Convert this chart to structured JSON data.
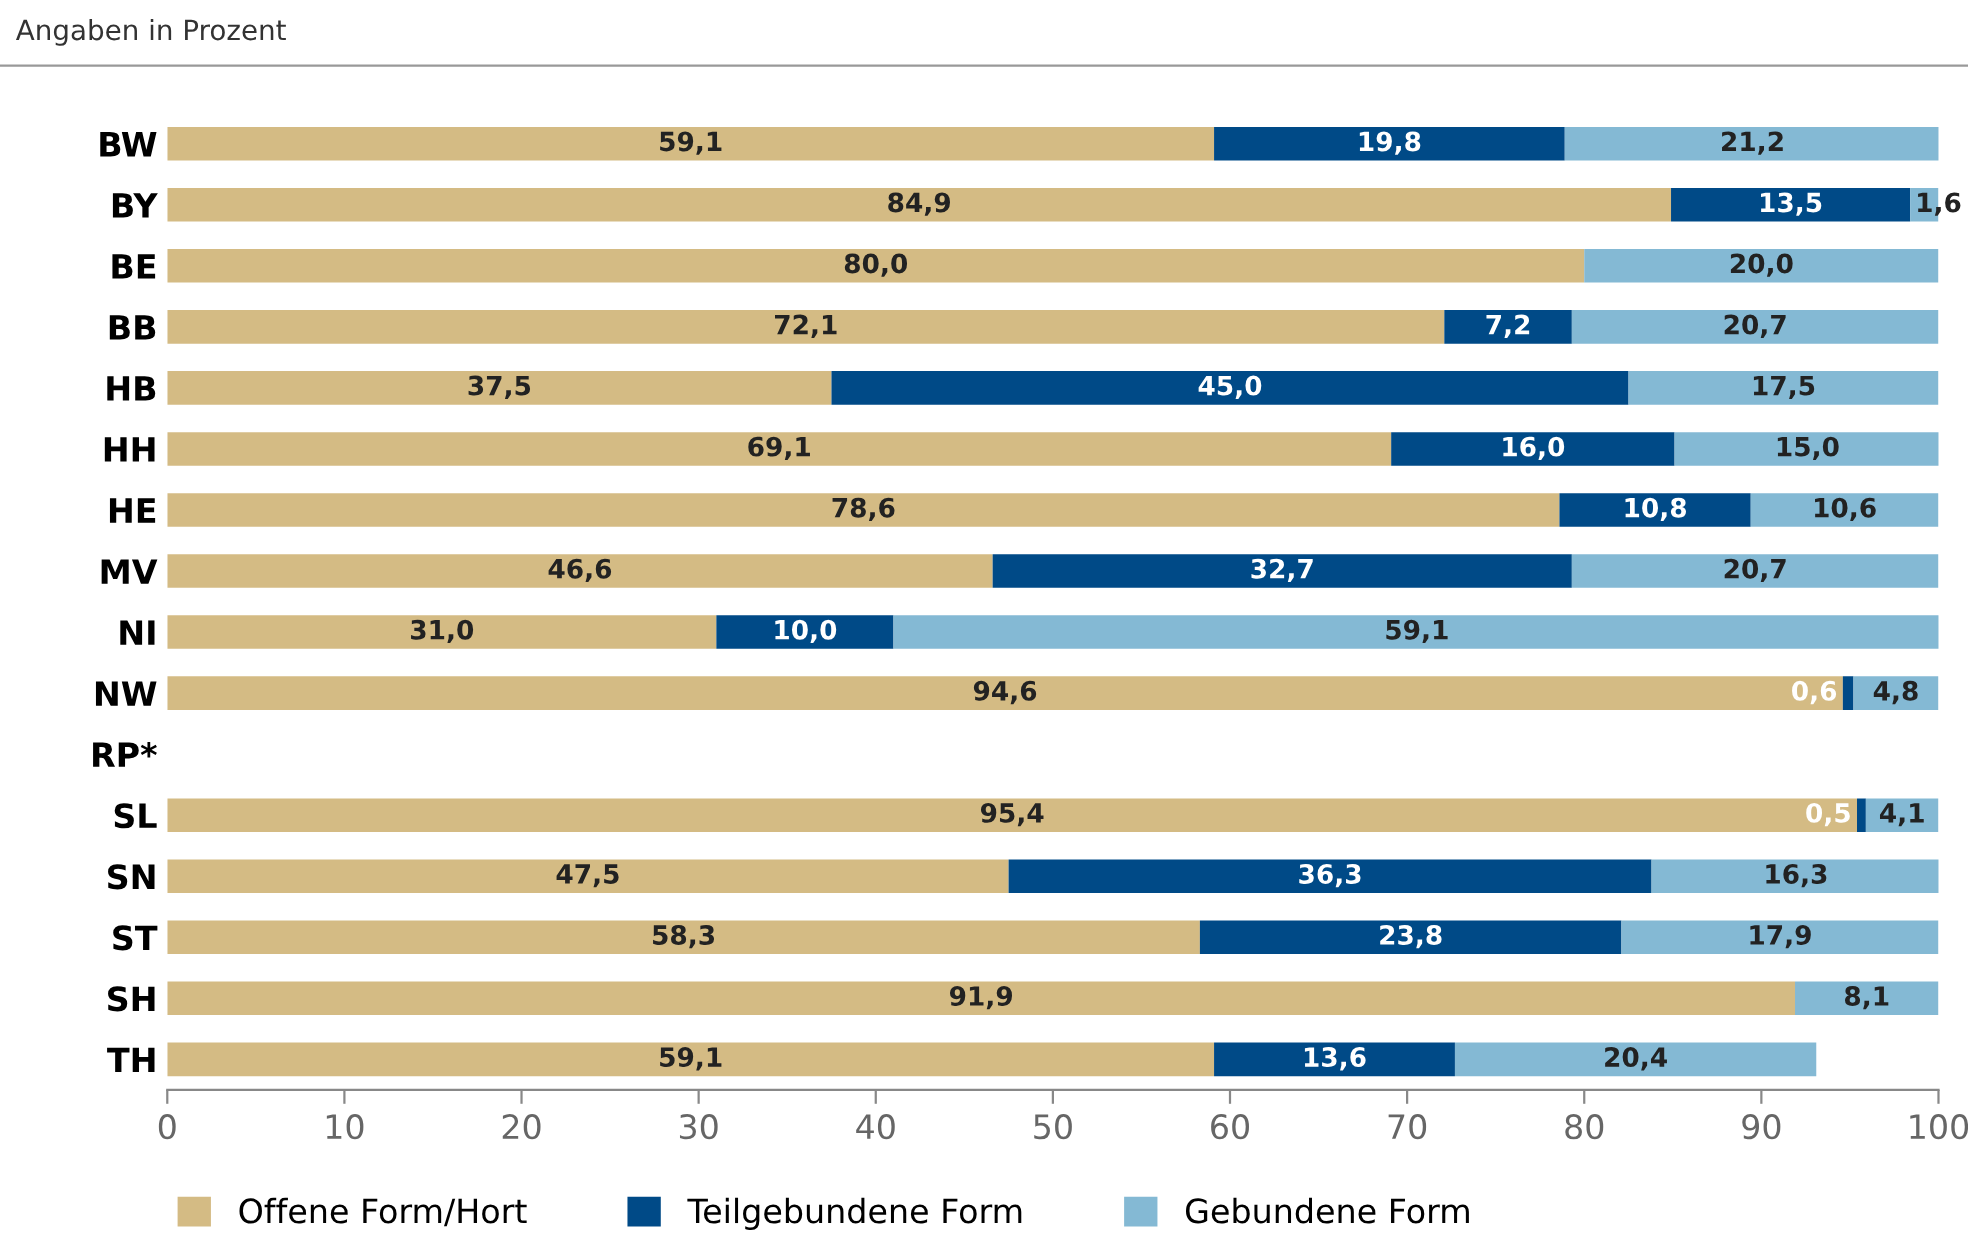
{
  "chart_data": {
    "type": "bar",
    "orientation": "horizontal",
    "stacked": true,
    "title": "Angaben in Prozent",
    "categories": [
      "BW",
      "BY",
      "BE",
      "BB",
      "HB",
      "HH",
      "HE",
      "MV",
      "NI",
      "NW",
      "RP*",
      "SL",
      "SN",
      "ST",
      "SH",
      "TH"
    ],
    "series": [
      {
        "name": "Offene Form/Hort",
        "color": "#d4bb84",
        "values": [
          59.1,
          84.9,
          80.0,
          72.1,
          37.5,
          69.1,
          78.6,
          46.6,
          31.0,
          94.6,
          null,
          95.4,
          47.5,
          58.3,
          91.9,
          59.1
        ],
        "value_labels": [
          "59,1",
          "84,9",
          "80,0",
          "72,1",
          "37,5",
          "69,1",
          "78,6",
          "46,6",
          "31,0",
          "94,6",
          null,
          "95,4",
          "47,5",
          "58,3",
          "91,9",
          "59,1"
        ]
      },
      {
        "name": "Teilgebundene Form",
        "color": "#004a87",
        "values": [
          19.8,
          13.5,
          null,
          7.2,
          45.0,
          16.0,
          10.8,
          32.7,
          10.0,
          0.6,
          null,
          0.5,
          36.3,
          23.8,
          null,
          13.6
        ],
        "value_labels": [
          "19,8",
          "13,5",
          null,
          "7,2",
          "45,0",
          "16,0",
          "10,8",
          "32,7",
          "10,0",
          "0,6",
          null,
          "0,5",
          "36,3",
          "23,8",
          null,
          "13,6"
        ]
      },
      {
        "name": "Gebundene Form",
        "color": "#84b9d4",
        "values": [
          21.2,
          1.6,
          20.0,
          20.7,
          17.5,
          15.0,
          10.6,
          20.7,
          59.1,
          4.8,
          null,
          4.1,
          16.3,
          17.9,
          8.1,
          20.4
        ],
        "value_labels": [
          "21,2",
          "1,6",
          "20,0",
          "20,7",
          "17,5",
          "15,0",
          "10,6",
          "20,7",
          "59,1",
          "4,8",
          null,
          "4,1",
          "16,3",
          "17,9",
          "8,1",
          "20,4"
        ]
      }
    ],
    "xlim": [
      0,
      100
    ],
    "xticks": [
      0,
      10,
      20,
      30,
      40,
      50,
      60,
      70,
      80,
      90,
      100
    ],
    "grid": false,
    "legend": "bottom"
  }
}
